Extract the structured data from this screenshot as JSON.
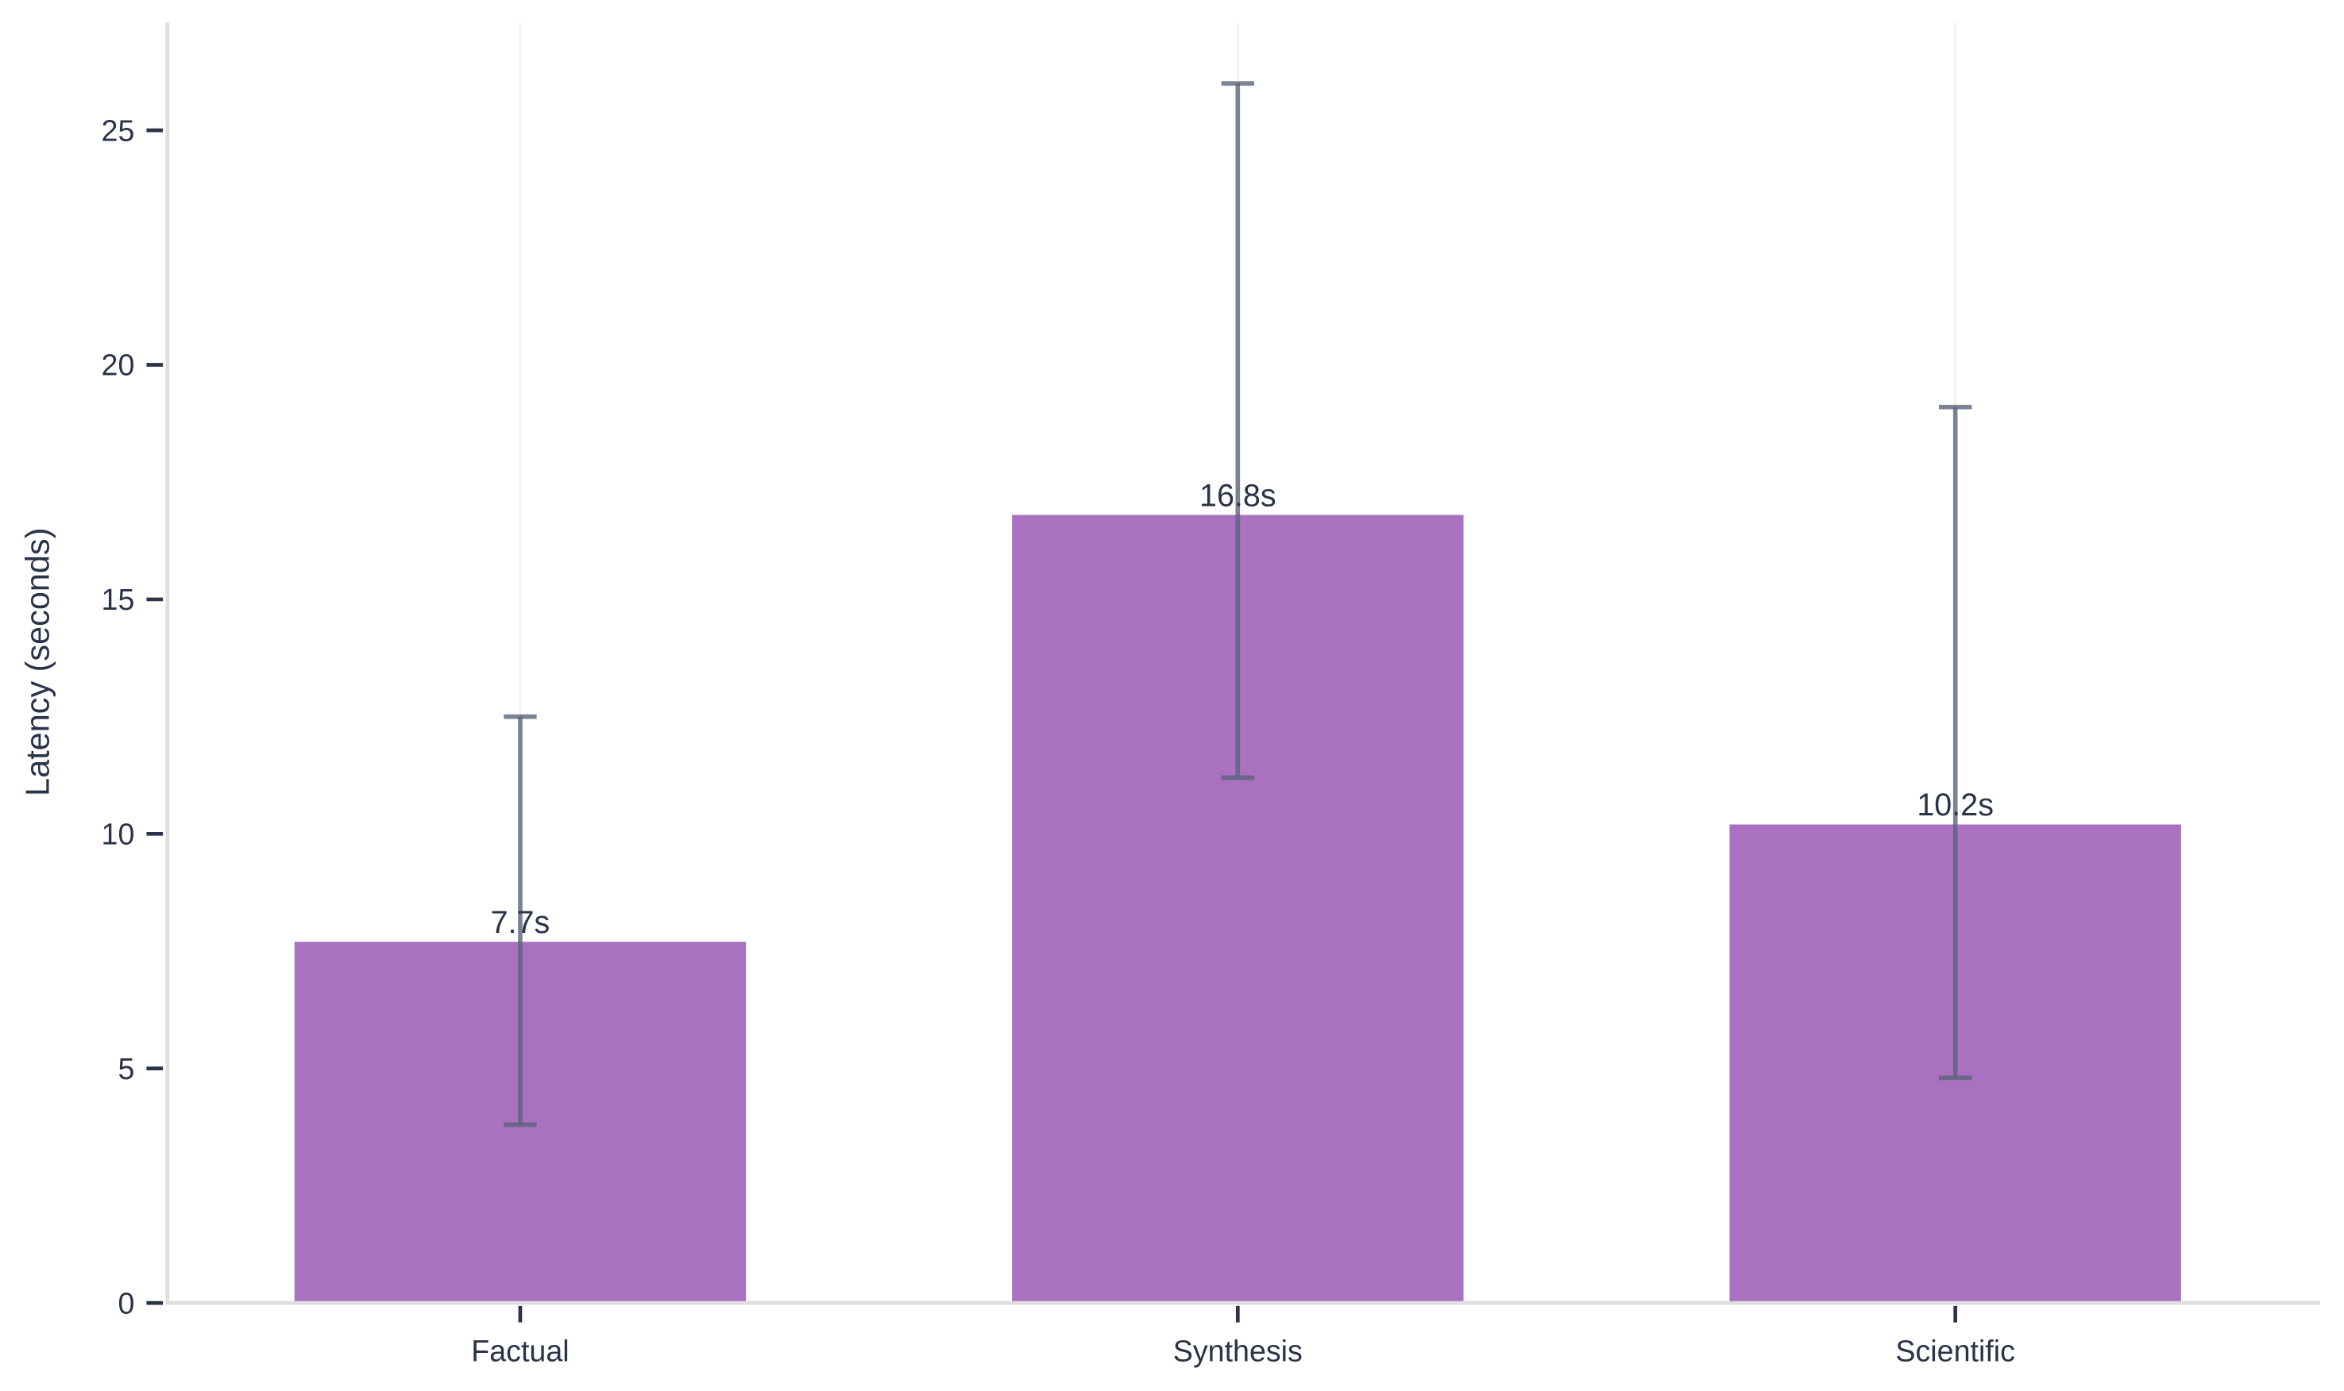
{
  "chart_data": {
    "type": "bar",
    "title": "",
    "xlabel": "",
    "ylabel": "Latency (seconds)",
    "categories": [
      "Factual",
      "Synthesis",
      "Scientific"
    ],
    "values": [
      7.7,
      16.8,
      10.2
    ],
    "value_labels": [
      "7.7s",
      "16.8s",
      "10.2s"
    ],
    "error_low": [
      3.8,
      11.2,
      4.8
    ],
    "error_high": [
      12.5,
      26.0,
      19.1
    ],
    "ylim": [
      0,
      27.3
    ],
    "yticks": [
      0,
      5,
      10,
      15,
      20,
      25
    ],
    "ytick_labels": [
      "0",
      "5",
      "10",
      "15",
      "20",
      "25"
    ],
    "grid": "vertical",
    "legend": "none",
    "colors": {
      "bar": "#a971bf",
      "error_bar": "#5a6479",
      "text": "#2a3347",
      "axis": "#dedede",
      "tick": "#2a3347",
      "grid": "#f3f3f3"
    }
  }
}
